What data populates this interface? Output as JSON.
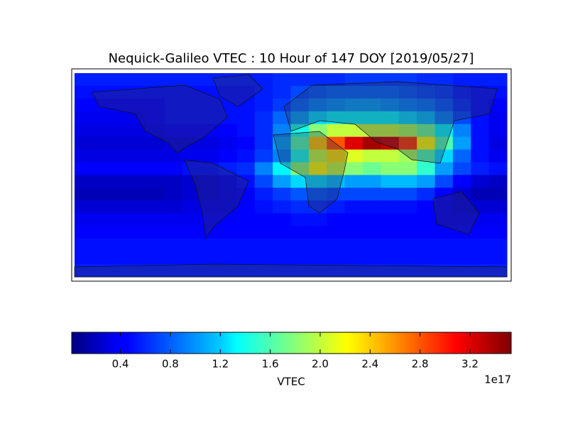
{
  "chart_data": {
    "type": "heatmap",
    "title": "Nequick-Galileo VTEC : 10 Hour of 147 DOY [2019/05/27]",
    "colorbar_label": "VTEC",
    "colorbar_offset": "1e17",
    "clim": [
      0.01,
      3.53
    ],
    "cticks": [
      0.4,
      0.8,
      1.2,
      1.6,
      {
        "value": 2,
        "label": "2.0"
      },
      2.4,
      2.8,
      3.2
    ],
    "colormap": "jet",
    "values": [
      [
        0.55,
        0.55,
        0.55,
        0.55,
        0.55,
        0.55,
        0.55,
        0.55,
        0.55,
        0.55,
        0.55,
        0.6,
        0.6,
        0.6,
        0.6,
        0.65,
        0.65,
        0.65,
        0.65,
        0.6,
        0.6,
        0.55,
        0.55,
        0.55
      ],
      [
        0.5,
        0.5,
        0.5,
        0.5,
        0.5,
        0.5,
        0.5,
        0.5,
        0.5,
        0.5,
        0.55,
        0.6,
        0.7,
        0.75,
        0.8,
        0.8,
        0.8,
        0.8,
        0.75,
        0.7,
        0.65,
        0.55,
        0.5,
        0.5
      ],
      [
        0.45,
        0.45,
        0.45,
        0.45,
        0.45,
        0.5,
        0.5,
        0.5,
        0.5,
        0.5,
        0.55,
        0.65,
        0.8,
        0.9,
        0.95,
        1.0,
        1.0,
        0.95,
        0.9,
        0.85,
        0.75,
        0.6,
        0.5,
        0.45
      ],
      [
        0.4,
        0.4,
        0.4,
        0.4,
        0.45,
        0.5,
        0.5,
        0.5,
        0.5,
        0.5,
        0.6,
        0.8,
        1.0,
        1.2,
        1.3,
        1.3,
        1.3,
        1.3,
        1.2,
        1.1,
        0.9,
        0.7,
        0.5,
        0.4
      ],
      [
        0.35,
        0.35,
        0.35,
        0.35,
        0.4,
        0.45,
        0.45,
        0.45,
        0.45,
        0.5,
        0.6,
        0.9,
        1.4,
        1.8,
        2.0,
        2.0,
        2.0,
        2.0,
        1.9,
        1.7,
        1.3,
        0.9,
        0.5,
        0.4
      ],
      [
        0.3,
        0.3,
        0.3,
        0.3,
        0.3,
        0.35,
        0.35,
        0.35,
        0.4,
        0.45,
        0.6,
        1.0,
        1.6,
        2.4,
        2.8,
        3.2,
        3.4,
        3.3,
        2.9,
        2.2,
        1.6,
        1.0,
        0.5,
        0.35
      ],
      [
        0.35,
        0.35,
        0.35,
        0.35,
        0.35,
        0.35,
        0.4,
        0.4,
        0.45,
        0.5,
        0.65,
        0.9,
        1.4,
        2.0,
        2.3,
        2.1,
        2.0,
        2.0,
        1.9,
        1.6,
        1.2,
        0.8,
        0.5,
        0.4
      ],
      [
        0.45,
        0.45,
        0.45,
        0.45,
        0.45,
        0.45,
        0.5,
        0.5,
        0.55,
        0.6,
        0.9,
        1.3,
        1.8,
        2.2,
        2.0,
        1.8,
        1.7,
        1.8,
        1.8,
        1.5,
        1.0,
        0.7,
        0.55,
        0.5
      ],
      [
        0.25,
        0.25,
        0.25,
        0.25,
        0.25,
        0.25,
        0.3,
        0.35,
        0.4,
        0.5,
        0.7,
        1.0,
        1.2,
        1.2,
        1.1,
        1.0,
        1.0,
        1.1,
        1.1,
        1.0,
        0.7,
        0.45,
        0.3,
        0.25
      ],
      [
        0.2,
        0.2,
        0.2,
        0.2,
        0.2,
        0.25,
        0.3,
        0.35,
        0.4,
        0.45,
        0.55,
        0.65,
        0.75,
        0.75,
        0.7,
        0.7,
        0.7,
        0.7,
        0.7,
        0.6,
        0.45,
        0.3,
        0.2,
        0.2
      ],
      [
        0.3,
        0.3,
        0.3,
        0.3,
        0.3,
        0.3,
        0.35,
        0.4,
        0.4,
        0.45,
        0.5,
        0.55,
        0.6,
        0.6,
        0.55,
        0.5,
        0.5,
        0.5,
        0.5,
        0.45,
        0.4,
        0.35,
        0.3,
        0.3
      ],
      [
        0.4,
        0.4,
        0.4,
        0.4,
        0.4,
        0.4,
        0.4,
        0.45,
        0.45,
        0.45,
        0.45,
        0.45,
        0.5,
        0.5,
        0.45,
        0.45,
        0.45,
        0.45,
        0.45,
        0.45,
        0.4,
        0.4,
        0.4,
        0.4
      ],
      [
        0.45,
        0.45,
        0.45,
        0.45,
        0.45,
        0.45,
        0.45,
        0.45,
        0.45,
        0.45,
        0.45,
        0.45,
        0.45,
        0.45,
        0.45,
        0.45,
        0.45,
        0.45,
        0.45,
        0.45,
        0.45,
        0.45,
        0.45,
        0.45
      ],
      [
        0.5,
        0.5,
        0.5,
        0.5,
        0.5,
        0.5,
        0.5,
        0.5,
        0.5,
        0.5,
        0.5,
        0.5,
        0.5,
        0.5,
        0.5,
        0.5,
        0.5,
        0.5,
        0.5,
        0.5,
        0.5,
        0.5,
        0.5,
        0.5
      ],
      [
        0.5,
        0.5,
        0.5,
        0.5,
        0.5,
        0.5,
        0.5,
        0.5,
        0.5,
        0.5,
        0.5,
        0.5,
        0.5,
        0.5,
        0.5,
        0.5,
        0.5,
        0.5,
        0.5,
        0.5,
        0.5,
        0.5,
        0.5,
        0.5
      ],
      [
        0.55,
        0.55,
        0.55,
        0.55,
        0.55,
        0.55,
        0.55,
        0.55,
        0.55,
        0.55,
        0.55,
        0.55,
        0.55,
        0.55,
        0.55,
        0.55,
        0.55,
        0.55,
        0.55,
        0.55,
        0.55,
        0.55,
        0.55,
        0.55
      ]
    ]
  }
}
